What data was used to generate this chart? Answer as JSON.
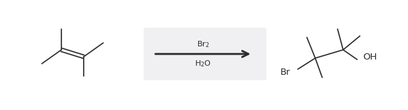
{
  "bg_color": "#ffffff",
  "reagent_box_color": "#f0f0f2",
  "line_color": "#2a2a2a",
  "text_color": "#2a2a2a",
  "arrow_label_top": "Br$_2$",
  "arrow_label_bottom": "H$_2$O",
  "label_fontsize": 8.0,
  "fig_width": 5.85,
  "fig_height": 1.59,
  "dpi": 100
}
